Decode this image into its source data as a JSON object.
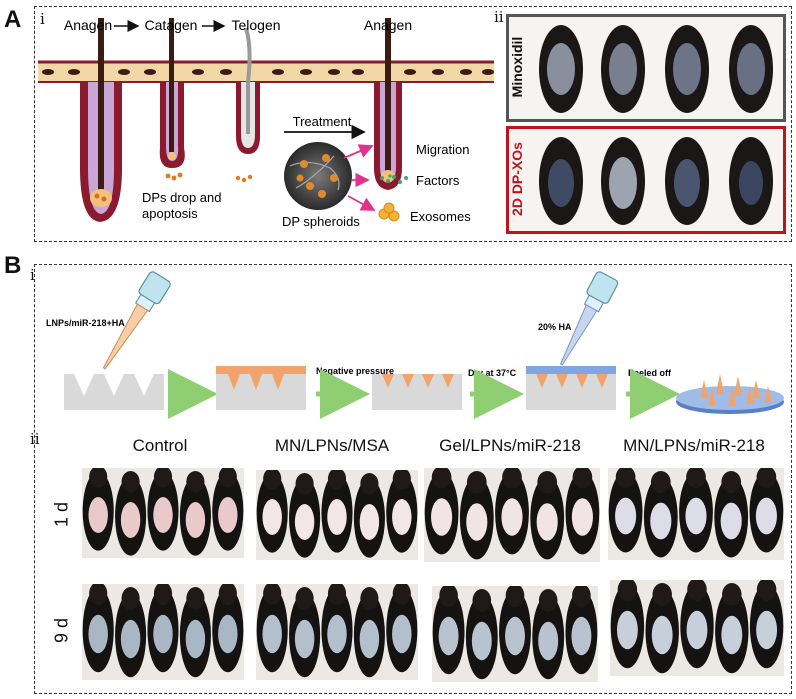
{
  "panel_a": {
    "letter": "A",
    "sub_i": "i",
    "sub_ii": "ii",
    "cycle": {
      "stage_1": "Anagen",
      "stage_2": "Catagen",
      "stage_3": "Telogen",
      "stage_4": "Anagen"
    },
    "treatment_label": "Treatment",
    "dp_drop_label_line1": "DPs drop and",
    "dp_drop_label_line2": "apoptosis",
    "spheroids_label": "DP spheroids",
    "outputs": [
      "Migration",
      "Factors",
      "Exosomes"
    ],
    "groups": [
      "Minoxidil",
      "2D DP-XOs"
    ],
    "colors": {
      "skin": "#f3d7a6",
      "follicle": "#8b1a2e",
      "follicle_inner": "#c9a6d6",
      "hair": "#3a1c12",
      "arrow": "#e0338f",
      "minoxidil_border": "#555555",
      "xos_border": "#c0141c"
    }
  },
  "panel_b": {
    "letter": "B",
    "sub_i": "i",
    "sub_ii": "ii",
    "steps": {
      "load": "LNPs/miR-218+HA",
      "step_1": "Negative pressure",
      "step_2": "Dry at 37°C",
      "load_2": "20% HA",
      "step_3": "Peeled off"
    },
    "columns": [
      "Control",
      "MN/LPNs/MSA",
      "Gel/LPNs/miR-218",
      "MN/LPNs/miR-218"
    ],
    "rows": [
      "1 d",
      "9 d"
    ],
    "colors": {
      "mold": "#d9d9d9",
      "arrow": "#8fce73",
      "needle": "#f2a36b",
      "backing": "#7fa6e0"
    }
  }
}
